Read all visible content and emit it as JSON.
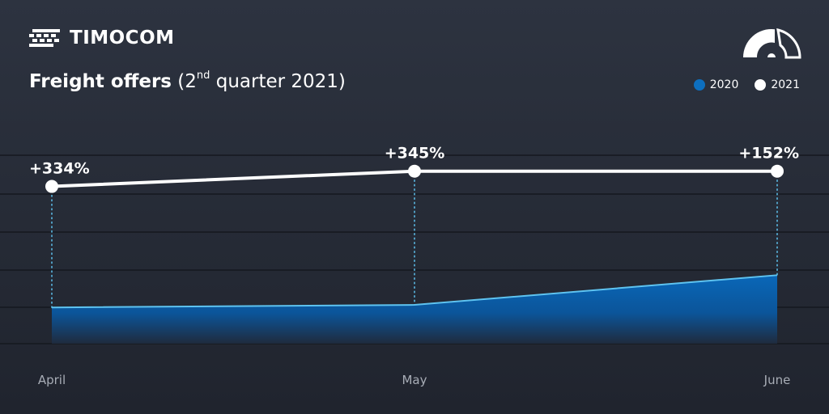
{
  "brand": {
    "name": "TIMOCOM"
  },
  "title": {
    "strong": "Freight offers",
    "open": "(2",
    "sup": "nd",
    "rest": " quarter 2021)"
  },
  "legend": [
    {
      "label": "2020",
      "color": "#0d6fbf"
    },
    {
      "label": "2021",
      "color": "#ffffff"
    }
  ],
  "chart_data": {
    "type": "line",
    "categories": [
      "April",
      "May",
      "June"
    ],
    "title": "Freight offers (2nd quarter 2021)",
    "series": [
      {
        "name": "2020",
        "values": [
          100,
          107,
          189
        ],
        "style": "area",
        "color": "#0d6fbf",
        "line_color": "#5ec3f0"
      },
      {
        "name": "2021",
        "values": [
          434,
          476,
          476
        ],
        "style": "line",
        "color": "#ffffff",
        "labels": [
          "+334%",
          "+345%",
          "+152%"
        ]
      }
    ],
    "ylim": [
      0,
      520
    ],
    "grid": true,
    "legend_position": "top-right"
  }
}
